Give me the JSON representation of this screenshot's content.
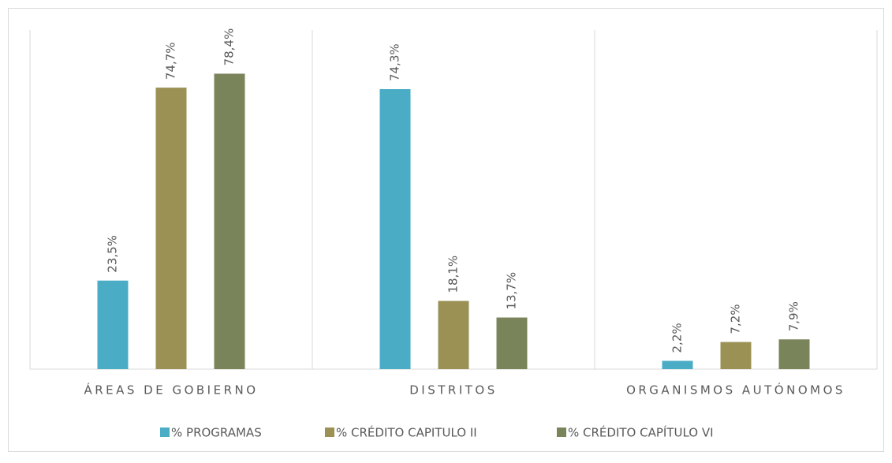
{
  "chart_data": {
    "type": "bar",
    "categories": [
      "ÁREAS DE GOBIERNO",
      "DISTRITOS",
      "ORGANISMOS AUTÓNOMOS"
    ],
    "series": [
      {
        "name": "% PROGRAMAS",
        "color": "#4bacc6",
        "values": [
          23.5,
          74.3,
          2.2
        ],
        "value_labels": [
          "23,5%",
          "74,3%",
          "2,2%"
        ]
      },
      {
        "name": "% CRÉDITO CAPITULO II",
        "color": "#9b9155",
        "values": [
          74.7,
          18.1,
          7.2
        ],
        "value_labels": [
          "74,7%",
          "18,1%",
          "7,2%"
        ]
      },
      {
        "name": "% CRÉDITO CAPÍTULO VI",
        "color": "#7a845a",
        "values": [
          78.4,
          13.7,
          7.9
        ],
        "value_labels": [
          "78,4%",
          "13,7%",
          "7,9%"
        ]
      }
    ],
    "ylim": [
      0,
      90
    ],
    "legend": "bottom"
  }
}
